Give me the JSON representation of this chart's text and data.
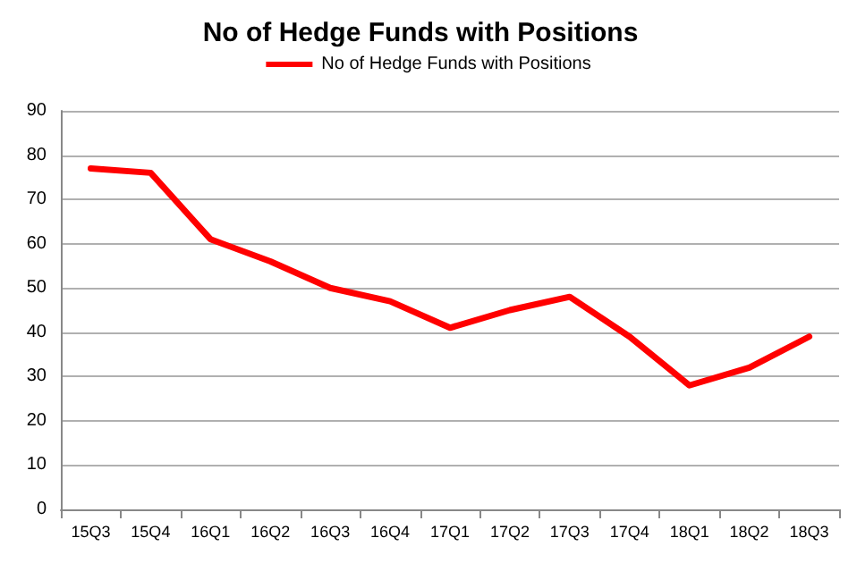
{
  "chart_data": {
    "type": "line",
    "title": "No of Hedge Funds with Positions",
    "categories": [
      "15Q3",
      "15Q4",
      "16Q1",
      "16Q2",
      "16Q3",
      "16Q4",
      "17Q1",
      "17Q2",
      "17Q3",
      "17Q4",
      "18Q1",
      "18Q2",
      "18Q3"
    ],
    "series": [
      {
        "name": "No of Hedge Funds with Positions",
        "color": "#ff0000",
        "values": [
          77,
          76,
          61,
          56,
          50,
          47,
          41,
          45,
          48,
          39,
          28,
          32,
          39
        ]
      }
    ],
    "ylim": [
      0,
      90
    ],
    "yticks": [
      0,
      10,
      20,
      30,
      40,
      50,
      60,
      70,
      80,
      90
    ],
    "grid": "y",
    "legend": "top",
    "marker": "none",
    "line_style": "solid"
  }
}
